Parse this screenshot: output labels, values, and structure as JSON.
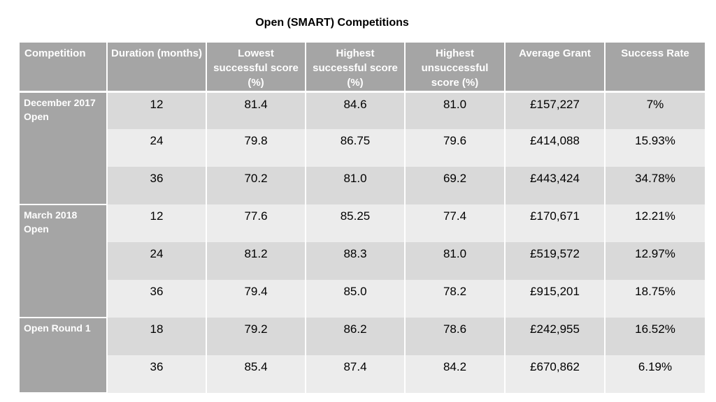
{
  "title": "Open (SMART) Competitions",
  "headers": [
    "Competition",
    "Duration (months)",
    "Lowest successful score (%)",
    "Highest successful score (%)",
    "Highest unsuccessful score (%)",
    "Average Grant",
    "Success Rate"
  ],
  "groups": [
    {
      "name": "December 2017 Open",
      "rows": [
        {
          "duration": "12",
          "lowest": "81.4",
          "highest": "84.6",
          "highest_unsuccessful": "81.0",
          "grant": "£157,227",
          "rate": "7%"
        },
        {
          "duration": "24",
          "lowest": "79.8",
          "highest": "86.75",
          "highest_unsuccessful": "79.6",
          "grant": "£414,088",
          "rate": "15.93%"
        },
        {
          "duration": "36",
          "lowest": "70.2",
          "highest": "81.0",
          "highest_unsuccessful": "69.2",
          "grant": "£443,424",
          "rate": "34.78%"
        }
      ]
    },
    {
      "name": "March 2018 Open",
      "rows": [
        {
          "duration": "12",
          "lowest": "77.6",
          "highest": "85.25",
          "highest_unsuccessful": "77.4",
          "grant": "£170,671",
          "rate": "12.21%"
        },
        {
          "duration": "24",
          "lowest": "81.2",
          "highest": "88.3",
          "highest_unsuccessful": "81.0",
          "grant": "£519,572",
          "rate": "12.97%"
        },
        {
          "duration": "36",
          "lowest": "79.4",
          "highest": "85.0",
          "highest_unsuccessful": "78.2",
          "grant": "£915,201",
          "rate": "18.75%"
        }
      ]
    },
    {
      "name": "Open Round 1",
      "rows": [
        {
          "duration": "18",
          "lowest": "79.2",
          "highest": "86.2",
          "highest_unsuccessful": "78.6",
          "grant": "£242,955",
          "rate": "16.52%"
        },
        {
          "duration": "36",
          "lowest": "85.4",
          "highest": "87.4",
          "highest_unsuccessful": "84.2",
          "grant": "£670,862",
          "rate": "6.19%"
        }
      ]
    }
  ]
}
